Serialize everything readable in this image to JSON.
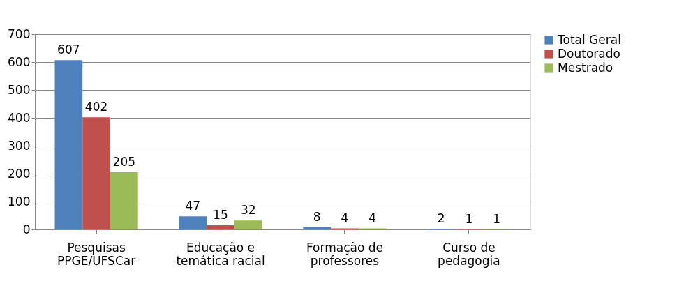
{
  "chart_data": {
    "type": "bar",
    "categories": [
      "Pesquisas\nPPGE/UFSCar",
      "Educação e\ntemática racial",
      "Formação de\nprofessores",
      "Curso de\npedagogia"
    ],
    "series": [
      {
        "name": "Total Geral",
        "color": "#4f81bd",
        "values": [
          607,
          47,
          8,
          2
        ]
      },
      {
        "name": "Doutorado",
        "color": "#c0504d",
        "values": [
          402,
          15,
          4,
          1
        ]
      },
      {
        "name": "Mestrado",
        "color": "#9bbb59",
        "values": [
          205,
          32,
          4,
          1
        ]
      }
    ],
    "ylim": [
      0,
      700
    ],
    "yticks": [
      0,
      100,
      200,
      300,
      400,
      500,
      600,
      700
    ],
    "grid": "y",
    "legend": "right",
    "data_labels": true
  }
}
